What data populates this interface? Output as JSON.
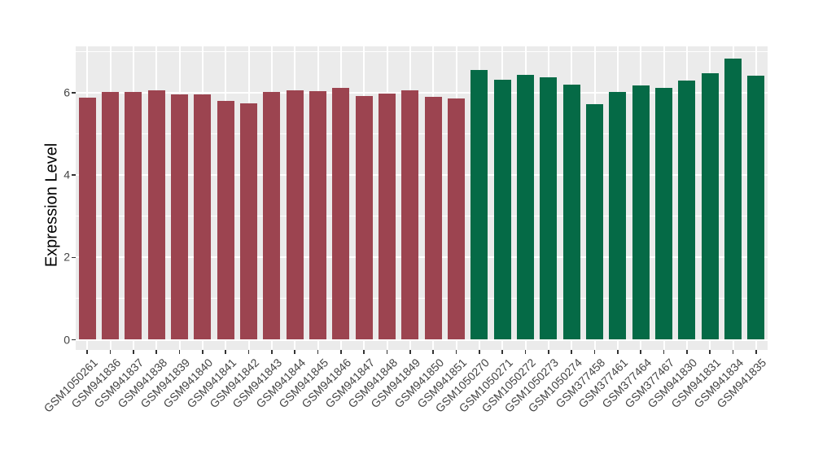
{
  "chart_data": {
    "type": "bar",
    "title": "",
    "ylabel": "Expression Level",
    "xlabel": "",
    "ylim": [
      0,
      7.1
    ],
    "yticks": [
      0,
      2,
      4,
      6
    ],
    "grid": true,
    "legend": "none",
    "panel_bg": "#EBEBEB",
    "grid_color": "#FFFFFF",
    "axis_text_color": "#444444",
    "group_colors": {
      "left": "#9C4450",
      "right": "#056A46"
    },
    "bars": [
      {
        "label": "GSM1050261",
        "value": 5.87,
        "group": "left"
      },
      {
        "label": "GSM941836",
        "value": 6.02,
        "group": "left"
      },
      {
        "label": "GSM941837",
        "value": 6.02,
        "group": "left"
      },
      {
        "label": "GSM941838",
        "value": 6.06,
        "group": "left"
      },
      {
        "label": "GSM941839",
        "value": 5.95,
        "group": "left"
      },
      {
        "label": "GSM941840",
        "value": 5.95,
        "group": "left"
      },
      {
        "label": "GSM941841",
        "value": 5.81,
        "group": "left"
      },
      {
        "label": "GSM941842",
        "value": 5.74,
        "group": "left"
      },
      {
        "label": "GSM941843",
        "value": 6.01,
        "group": "left"
      },
      {
        "label": "GSM941844",
        "value": 6.06,
        "group": "left"
      },
      {
        "label": "GSM941845",
        "value": 6.03,
        "group": "left"
      },
      {
        "label": "GSM941846",
        "value": 6.12,
        "group": "left"
      },
      {
        "label": "GSM941847",
        "value": 5.91,
        "group": "left"
      },
      {
        "label": "GSM941848",
        "value": 5.97,
        "group": "left"
      },
      {
        "label": "GSM941849",
        "value": 6.05,
        "group": "left"
      },
      {
        "label": "GSM941850",
        "value": 5.89,
        "group": "left"
      },
      {
        "label": "GSM941851",
        "value": 5.86,
        "group": "left"
      },
      {
        "label": "GSM1050270",
        "value": 6.55,
        "group": "right"
      },
      {
        "label": "GSM1050271",
        "value": 6.31,
        "group": "right"
      },
      {
        "label": "GSM1050272",
        "value": 6.43,
        "group": "right"
      },
      {
        "label": "GSM1050273",
        "value": 6.37,
        "group": "right"
      },
      {
        "label": "GSM1050274",
        "value": 6.2,
        "group": "right"
      },
      {
        "label": "GSM377458",
        "value": 5.72,
        "group": "right"
      },
      {
        "label": "GSM377461",
        "value": 6.01,
        "group": "right"
      },
      {
        "label": "GSM377464",
        "value": 6.17,
        "group": "right"
      },
      {
        "label": "GSM377467",
        "value": 6.12,
        "group": "right"
      },
      {
        "label": "GSM941830",
        "value": 6.3,
        "group": "right"
      },
      {
        "label": "GSM941831",
        "value": 6.48,
        "group": "right"
      },
      {
        "label": "GSM941834",
        "value": 6.82,
        "group": "right"
      },
      {
        "label": "GSM941835",
        "value": 6.42,
        "group": "right"
      }
    ]
  }
}
